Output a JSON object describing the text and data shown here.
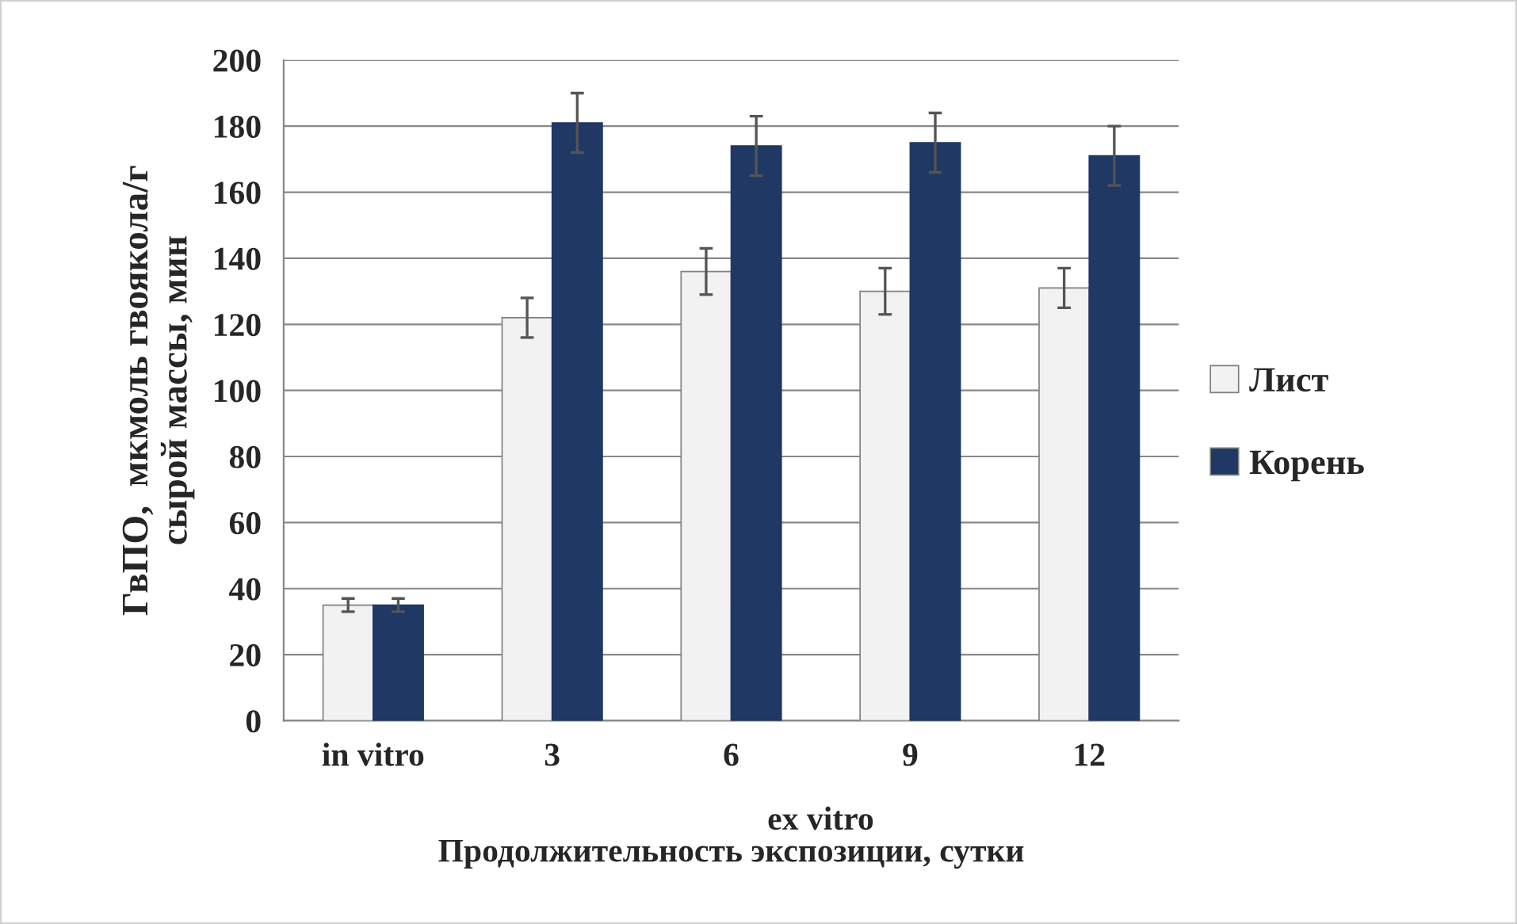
{
  "chart_data": {
    "type": "bar",
    "categories": [
      "in vitro",
      "3",
      "6",
      "9",
      "12"
    ],
    "xlabel": "Продолжительность экспозиции, сутки",
    "ylabel": "ГвПО,  мкмоль гвояколa/г\nсырой массы, мин",
    "annotations": [
      "ex vitro"
    ],
    "series": [
      {
        "name": "Лист",
        "color": "#f2f2f2",
        "values": [
          35,
          122,
          136,
          130,
          131
        ],
        "errors": [
          2,
          6,
          7,
          7,
          6
        ]
      },
      {
        "name": "Корень",
        "color": "#1f3864",
        "values": [
          35,
          181,
          174,
          175,
          171
        ],
        "errors": [
          2,
          9,
          9,
          9,
          9
        ]
      }
    ],
    "ylim": [
      0,
      200
    ],
    "yticks": [
      0,
      20,
      40,
      60,
      80,
      100,
      120,
      140,
      160,
      180,
      200
    ],
    "grid": "y",
    "legend": "right"
  }
}
